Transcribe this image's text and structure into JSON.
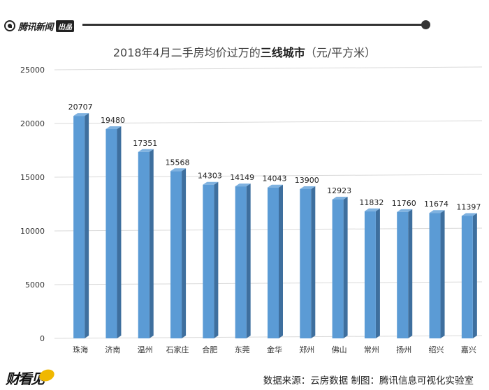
{
  "header": {
    "brand_name": "腾讯新闻",
    "brand_tag": "出品",
    "brand_icon": "tencent-news-logo-icon"
  },
  "chart_data": {
    "type": "bar",
    "title_prefix": "2018年4月二手房均价过万的",
    "title_highlight": "三线城市",
    "title_suffix": "（元/平方米）",
    "categories": [
      "珠海",
      "济南",
      "温州",
      "石家庄",
      "合肥",
      "东莞",
      "金华",
      "郑州",
      "佛山",
      "常州",
      "扬州",
      "绍兴",
      "嘉兴"
    ],
    "values": [
      20707,
      19480,
      17351,
      15568,
      14303,
      14149,
      14043,
      13900,
      12923,
      11832,
      11760,
      11674,
      11397
    ],
    "ylim": [
      0,
      25000
    ],
    "yticks": [
      0,
      5000,
      10000,
      15000,
      20000,
      25000
    ],
    "grid": true,
    "legend": "none",
    "bar_color": "#5b9bd5",
    "bar_side_color": "#3e6f9e",
    "bar_top_color": "#7fb2e0"
  },
  "footer": {
    "logo_text": "财看见",
    "source": "数据来源：云房数据   制图：腾讯信息可视化实验室"
  }
}
